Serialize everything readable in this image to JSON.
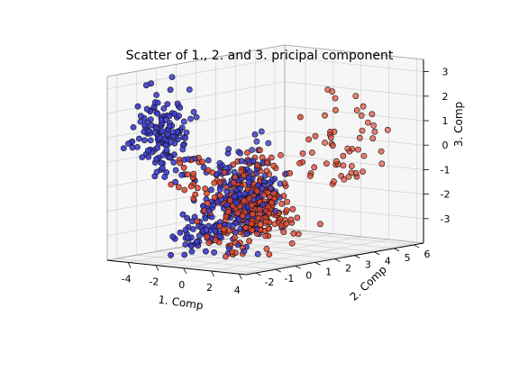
{
  "chart_data": {
    "type": "scatter",
    "projection": "3d",
    "title": "Scatter of 1., 2. and 3. pricipal component",
    "xlabel": "1. Comp",
    "ylabel": "2. Comp",
    "zlabel": "3. Comp",
    "xlim": [
      -5.5,
      4.5
    ],
    "ylim": [
      -2.5,
      6.5
    ],
    "zlim": [
      -4,
      3.5
    ],
    "xticks": [
      -4,
      -2,
      0,
      2,
      4
    ],
    "yticks": [
      -2,
      -1,
      0,
      1,
      2,
      3,
      4,
      5,
      6
    ],
    "zticks": [
      -3,
      -2,
      -1,
      0,
      1,
      2,
      3
    ],
    "grid": true,
    "legend": "none",
    "series": [
      {
        "color": "#3d3dd0",
        "clusters": [
          {
            "center": [
              -3.6,
              -1.0,
              1.0
            ],
            "spread": [
              0.7,
              0.5,
              0.9
            ],
            "count": 150
          },
          {
            "center": [
              0.0,
              0.4,
              -1.5
            ],
            "spread": [
              0.9,
              0.7,
              0.9
            ],
            "count": 220
          },
          {
            "center": [
              -0.6,
              -1.3,
              -2.8
            ],
            "spread": [
              0.6,
              0.5,
              0.5
            ],
            "count": 60
          }
        ]
      },
      {
        "color": "#e0452e",
        "clusters": [
          {
            "center": [
              0.3,
              0.8,
              -1.9
            ],
            "spread": [
              0.9,
              0.8,
              0.9
            ],
            "count": 260
          },
          {
            "center": [
              2.6,
              3.6,
              0.3
            ],
            "spread": [
              0.9,
              1.3,
              1.1
            ],
            "count": 60
          },
          {
            "center": [
              -2.0,
              -0.4,
              -0.8
            ],
            "spread": [
              0.5,
              0.5,
              0.7
            ],
            "count": 25
          }
        ]
      }
    ]
  }
}
